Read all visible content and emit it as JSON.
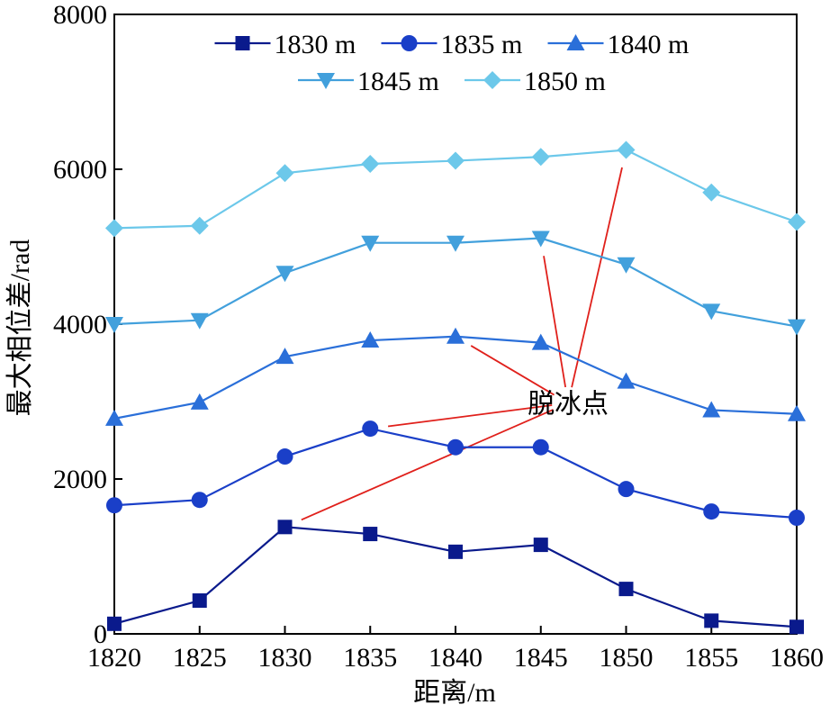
{
  "chart_data": {
    "type": "line",
    "xlabel": "距离/m",
    "ylabel": "最大相位差/rad",
    "xlim": [
      1820,
      1860
    ],
    "ylim": [
      0,
      8000
    ],
    "xticks": [
      1820,
      1825,
      1830,
      1835,
      1840,
      1845,
      1850,
      1855,
      1860
    ],
    "yticks": [
      0,
      2000,
      4000,
      6000,
      8000
    ],
    "grid": false,
    "legend_position": "top",
    "x": [
      1820,
      1825,
      1830,
      1835,
      1840,
      1845,
      1850,
      1855,
      1860
    ],
    "series": [
      {
        "name": "1830 m",
        "color": "#0a1a8c",
        "marker": "square",
        "values": [
          130,
          430,
          1380,
          1290,
          1060,
          1150,
          580,
          170,
          90
        ]
      },
      {
        "name": "1835 m",
        "color": "#1a3fc8",
        "marker": "circle",
        "values": [
          1660,
          1730,
          2290,
          2650,
          2410,
          2410,
          1870,
          1580,
          1500
        ]
      },
      {
        "name": "1840 m",
        "color": "#2a6fd9",
        "marker": "triangle-up",
        "values": [
          2780,
          2990,
          3580,
          3790,
          3840,
          3760,
          3260,
          2890,
          2840
        ]
      },
      {
        "name": "1845 m",
        "color": "#42a0dc",
        "marker": "triangle-down",
        "values": [
          4000,
          4050,
          4660,
          5050,
          5050,
          5110,
          4770,
          4170,
          3970
        ]
      },
      {
        "name": "1850 m",
        "color": "#6cc8ea",
        "marker": "diamond",
        "values": [
          5240,
          5270,
          5950,
          6070,
          6110,
          6160,
          6250,
          5700,
          5320
        ]
      }
    ],
    "annotations": [
      {
        "text": "脱冰点",
        "color": "#e0201b",
        "at": {
          "x": 1846.6,
          "y": 2980
        },
        "pointers": [
          {
            "series": "1830 m",
            "x": 1830
          },
          {
            "series": "1835 m",
            "x": 1835
          },
          {
            "series": "1840 m",
            "x": 1840
          },
          {
            "series": "1845 m",
            "x": 1845
          },
          {
            "series": "1850 m",
            "x": 1850
          }
        ]
      }
    ]
  }
}
